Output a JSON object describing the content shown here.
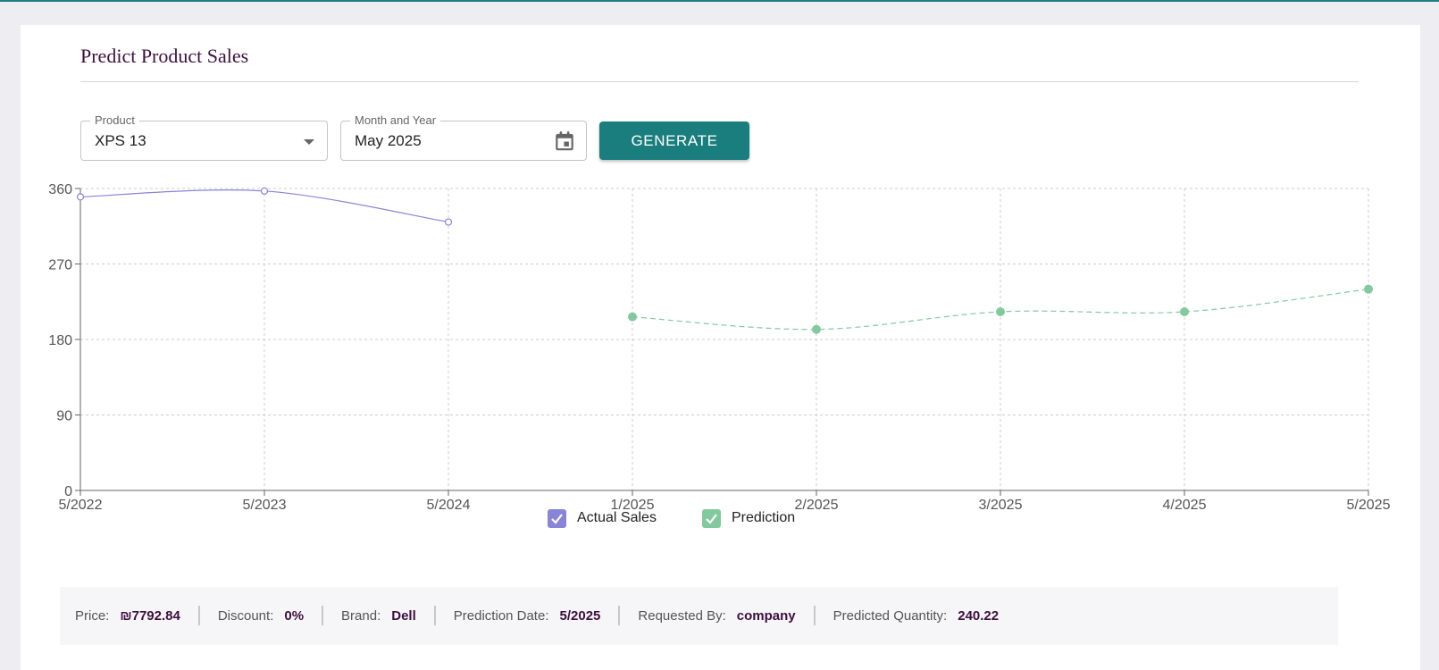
{
  "page": {
    "title": "Predict Product Sales"
  },
  "form": {
    "product_label": "Product",
    "product_value": "XPS 13",
    "date_label": "Month and Year",
    "date_value": "May 2025",
    "generate_label": "GENERATE"
  },
  "colors": {
    "accent": "#1b7e7e",
    "title": "#3e0f3e",
    "actual_series": "#8884d8",
    "prediction_series": "#82ca9d"
  },
  "icons": {
    "calendar": "calendar-icon",
    "dropdown": "chevron-down-icon",
    "check": "check-icon"
  },
  "chart_data": {
    "type": "line",
    "categories": [
      "5/2022",
      "5/2023",
      "5/2024",
      "1/2025",
      "2/2025",
      "3/2025",
      "4/2025",
      "5/2025"
    ],
    "yticks": [
      0,
      90,
      180,
      270,
      360
    ],
    "ylim": [
      0,
      360
    ],
    "grid": true,
    "legend_position": "bottom",
    "series": [
      {
        "name": "Actual Sales",
        "style": "solid",
        "values": [
          350,
          357,
          320,
          null,
          null,
          null,
          null,
          null
        ]
      },
      {
        "name": "Prediction",
        "style": "dashed",
        "values": [
          null,
          null,
          null,
          207,
          192,
          213,
          213,
          240
        ]
      }
    ]
  },
  "info": {
    "price_label": "Price:",
    "price_value": "₪7792.84",
    "discount_label": "Discount:",
    "discount_value": "0%",
    "brand_label": "Brand:",
    "brand_value": "Dell",
    "date_label": "Prediction Date:",
    "date_value": "5/2025",
    "requested_label": "Requested By:",
    "requested_value": "company",
    "quantity_label": "Predicted Quantity:",
    "quantity_value": "240.22"
  }
}
